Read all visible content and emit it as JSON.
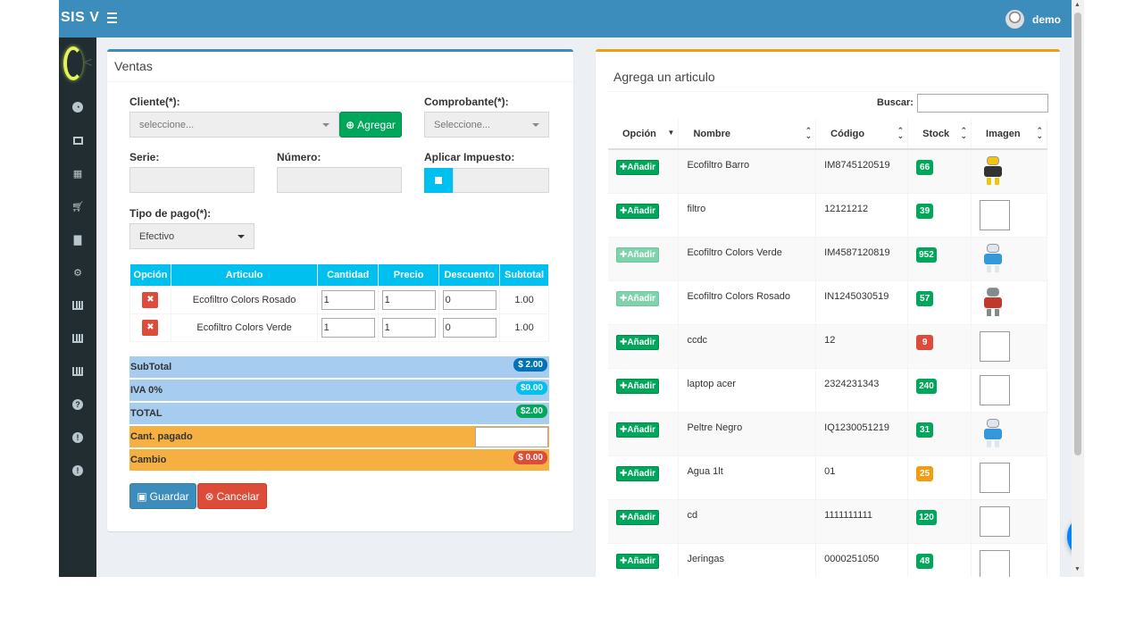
{
  "app": {
    "brand": "SIS V",
    "user": "demo"
  },
  "ventas": {
    "title": "Ventas",
    "cliente_label": "Cliente(*):",
    "cliente_placeholder": "seleccione...",
    "agregar_label": "Agregar",
    "comprobante_label": "Comprobante(*):",
    "comprobante_placeholder": "Seleccione...",
    "serie_label": "Serie:",
    "numero_label": "Número:",
    "impuesto_label": "Aplicar Impuesto:",
    "tipo_pago_label": "Tipo de pago(*):",
    "tipo_pago_value": "Efectivo",
    "columns": [
      "Opción",
      "Articulo",
      "Cantidad",
      "Precio",
      "Descuento",
      "Subtotal"
    ],
    "rows": [
      {
        "articulo": "Ecofiltro Colors Rosado",
        "cantidad": "1",
        "precio": "1",
        "descuento": "0",
        "subtotal": "1.00"
      },
      {
        "articulo": "Ecofiltro Colors Verde",
        "cantidad": "1",
        "precio": "1",
        "descuento": "0",
        "subtotal": "1.00"
      }
    ],
    "totals": {
      "subtotal_label": "SubTotal",
      "subtotal_value": "$ 2.00",
      "iva_label": "IVA 0%",
      "iva_value": "$0.00",
      "total_label": "TOTAL",
      "total_value": "$2.00",
      "pagado_label": "Cant. pagado",
      "cambio_label": "Cambio",
      "cambio_value": "$ 0.00"
    },
    "guardar_label": "Guardar",
    "cancelar_label": "Cancelar"
  },
  "articulos": {
    "title": "Agrega un articulo",
    "buscar_label": "Buscar:",
    "columns": [
      "Opción",
      "Nombre",
      "Código",
      "Stock",
      "Imagen"
    ],
    "add_label": "Añadir",
    "rows": [
      {
        "nombre": "Ecofiltro Barro",
        "codigo": "IM8745120519",
        "stock": "66",
        "stock_color": "#00a65a",
        "image": "robot-yellow",
        "enabled": true
      },
      {
        "nombre": "filtro",
        "codigo": "12121212",
        "stock": "39",
        "stock_color": "#00a65a",
        "image": "placeholder",
        "enabled": true
      },
      {
        "nombre": "Ecofiltro Colors Verde",
        "codigo": "IM4587120819",
        "stock": "952",
        "stock_color": "#00a65a",
        "image": "robot-white",
        "enabled": false
      },
      {
        "nombre": "Ecofiltro Colors Rosado",
        "codigo": "IN1245030519",
        "stock": "57",
        "stock_color": "#00a65a",
        "image": "robot-grey",
        "enabled": false
      },
      {
        "nombre": "ccdc",
        "codigo": "12",
        "stock": "9",
        "stock_color": "#dd4b39",
        "image": "placeholder",
        "enabled": true
      },
      {
        "nombre": "laptop acer",
        "codigo": "2324231343",
        "stock": "240",
        "stock_color": "#00a65a",
        "image": "placeholder",
        "enabled": true
      },
      {
        "nombre": "Peltre Negro",
        "codigo": "IQ1230051219",
        "stock": "31",
        "stock_color": "#00a65a",
        "image": "robot-white",
        "enabled": true
      },
      {
        "nombre": "Agua 1lt",
        "codigo": "01",
        "stock": "25",
        "stock_color": "#f39c12",
        "image": "placeholder",
        "enabled": true
      },
      {
        "nombre": "cd",
        "codigo": "1111111111",
        "stock": "120",
        "stock_color": "#00a65a",
        "image": "placeholder",
        "enabled": true
      },
      {
        "nombre": "Jeringas",
        "codigo": "0000251050",
        "stock": "48",
        "stock_color": "#00a65a",
        "image": "placeholder",
        "enabled": true
      }
    ]
  },
  "sidebar": {
    "icons": [
      "dashboard-icon",
      "laptop-icon",
      "grid-icon",
      "cart-icon",
      "folder-icon",
      "cogs-icon",
      "chart-icon",
      "chart-icon",
      "chart-icon",
      "help-icon",
      "info-icon",
      "info-icon"
    ]
  }
}
